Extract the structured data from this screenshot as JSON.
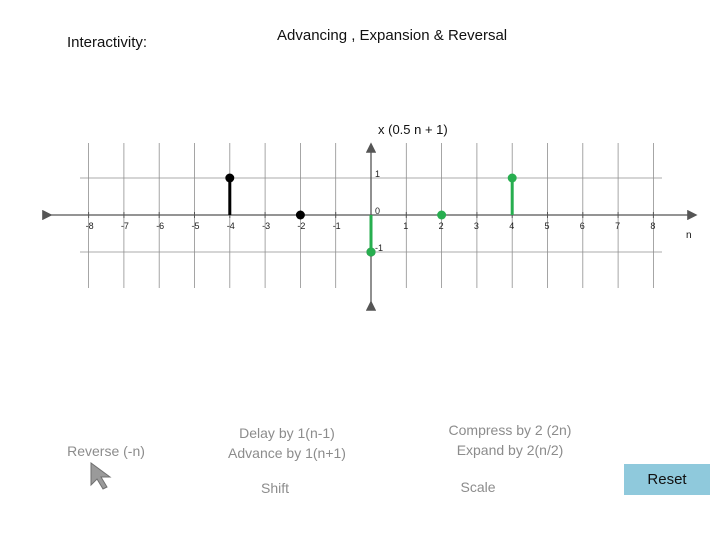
{
  "header": {
    "interactivity_label": "Interactivity:",
    "title": "Advancing , Expansion & Reversal"
  },
  "chart_data": {
    "type": "scatter",
    "style": "stem",
    "title": "x (0.5 n + 1)",
    "xlabel": "n",
    "ylabel": "",
    "xlim": [
      -9,
      9
    ],
    "ylim": [
      -1.5,
      1.5
    ],
    "x_ticks": [
      -8,
      -7,
      -6,
      -5,
      -4,
      -3,
      -2,
      -1,
      1,
      2,
      3,
      4,
      5,
      6,
      7,
      8
    ],
    "y_tick_labels": [
      {
        "value": 1,
        "label": "1"
      },
      {
        "value": 0,
        "label": "0"
      },
      {
        "value": -1,
        "label": "-1"
      }
    ],
    "grid": true,
    "series": [
      {
        "color": "#000000",
        "points": [
          {
            "x": -4,
            "y": 1
          },
          {
            "x": -2,
            "y": 0
          },
          {
            "x": 0,
            "y": -1
          }
        ]
      },
      {
        "color": "#27ae4f",
        "points": [
          {
            "x": 0,
            "y": -1
          },
          {
            "x": 2,
            "y": 0
          },
          {
            "x": 4,
            "y": 1
          }
        ]
      }
    ]
  },
  "controls": {
    "reverse": "Reverse (-n)",
    "delay_line1": "Delay by 1(n-1)",
    "delay_line2": "Advance by 1(n+1)",
    "shift": "Shift",
    "compress_line1": "Compress by 2 (2n)",
    "compress_line2": "Expand by 2(n/2)",
    "scale": "Scale",
    "reset": "Reset"
  },
  "icons": {
    "cursor": "arrow-cursor-icon"
  }
}
